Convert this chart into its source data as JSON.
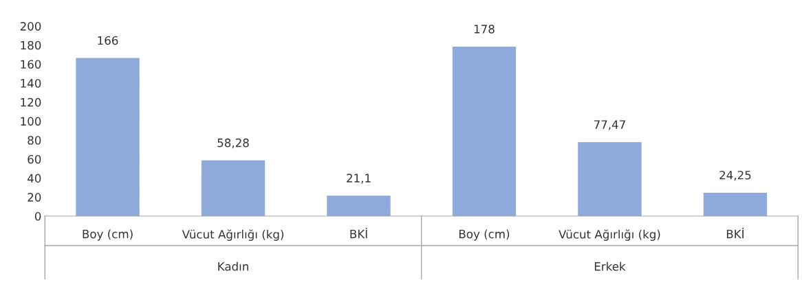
{
  "chart_data": {
    "type": "bar",
    "categories": [
      "Boy (cm)",
      "Vücut Ağırlığı (kg)",
      "BKİ",
      "Boy (cm)",
      "Vücut Ağırlığı (kg)",
      "BKİ"
    ],
    "values": [
      166,
      58.28,
      21.1,
      178,
      77.47,
      24.25
    ],
    "value_labels": [
      "166",
      "58,28",
      "21,1",
      "178",
      "77,47",
      "24,25"
    ],
    "color": "#8eaadb",
    "annotations": [
      "Kadın",
      "Erkek"
    ],
    "ylim": [
      0,
      200
    ],
    "yticks": [
      0,
      20,
      40,
      60,
      80,
      100,
      120,
      140,
      160,
      180,
      200
    ],
    "grid": false,
    "legend": false
  }
}
